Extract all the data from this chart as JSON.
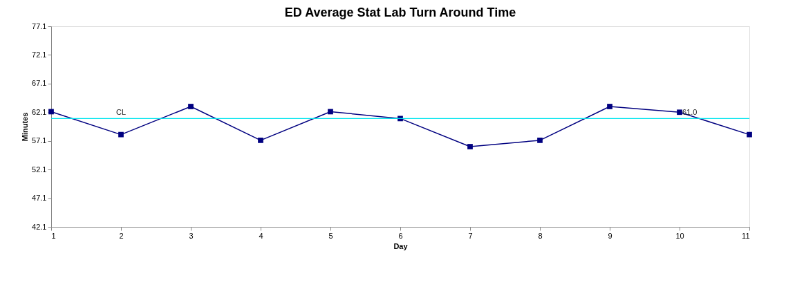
{
  "chart_data": {
    "type": "line",
    "title": "ED Average Stat Lab Turn Around Time",
    "xlabel": "Day",
    "ylabel": "Minutes",
    "x": [
      1,
      2,
      3,
      4,
      5,
      6,
      7,
      8,
      9,
      10,
      11
    ],
    "series": [
      {
        "color": "#000080",
        "values": [
          62.2,
          58.2,
          63.1,
          57.2,
          62.2,
          61.0,
          56.1,
          57.2,
          63.1,
          62.1,
          58.2
        ]
      }
    ],
    "xlim": [
      1,
      11
    ],
    "xticks": [
      1,
      2,
      3,
      4,
      5,
      6,
      7,
      8,
      9,
      10,
      11
    ],
    "ylim": [
      42.1,
      77.1
    ],
    "yticks": [
      42.1,
      47.1,
      52.1,
      57.1,
      62.1,
      67.1,
      72.1,
      77.1
    ],
    "ref_lines": [
      {
        "axis": "y",
        "value": 61.0,
        "label": "CL",
        "color": "#00e5ee"
      }
    ],
    "annotations": [
      {
        "text": "61.0",
        "x": 10,
        "y": 61.0
      }
    ],
    "marker": "square",
    "line_style": "solid",
    "grid": false
  }
}
